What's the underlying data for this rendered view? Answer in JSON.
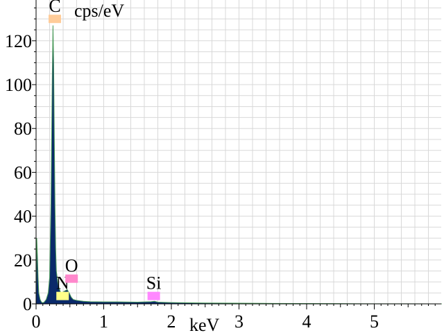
{
  "chart_data": {
    "type": "area",
    "xlabel": "keV",
    "ylabel": "cps/eV",
    "xlim": [
      0,
      6
    ],
    "ylim": [
      0,
      137
    ],
    "grid": true,
    "x_ticks": [
      {
        "value": 0,
        "label": "0"
      },
      {
        "value": 1,
        "label": "1"
      },
      {
        "value": 2,
        "label": "2"
      },
      {
        "value": 3,
        "label": "3"
      },
      {
        "value": 4,
        "label": "4"
      },
      {
        "value": 5,
        "label": "5"
      }
    ],
    "y_ticks": [
      {
        "value": 0,
        "label": "0"
      },
      {
        "value": 20,
        "label": "20"
      },
      {
        "value": 40,
        "label": "40"
      },
      {
        "value": 60,
        "label": "60"
      },
      {
        "value": 80,
        "label": "80"
      },
      {
        "value": 100,
        "label": "100"
      },
      {
        "value": 120,
        "label": "120"
      }
    ],
    "spectrum": {
      "x": [
        0.0,
        0.01,
        0.02,
        0.03,
        0.04,
        0.06,
        0.08,
        0.1,
        0.12,
        0.15,
        0.18,
        0.2,
        0.22,
        0.24,
        0.25,
        0.26,
        0.27,
        0.28,
        0.29,
        0.3,
        0.32,
        0.34,
        0.36,
        0.38,
        0.4,
        0.43,
        0.46,
        0.49,
        0.52,
        0.55,
        0.6,
        0.7,
        0.8,
        1.0,
        1.2,
        1.5,
        1.7,
        1.75,
        1.8,
        2.0,
        2.5,
        3.0,
        3.5,
        4.0,
        4.5,
        5.0,
        5.5,
        6.0
      ],
      "y": [
        0,
        30,
        22,
        12,
        5,
        2,
        0.8,
        0.5,
        0.8,
        2,
        5,
        12,
        45,
        105,
        127,
        110,
        75,
        45,
        25,
        15,
        10,
        7,
        5.5,
        5,
        5.5,
        6,
        6.5,
        5,
        3,
        2,
        1.6,
        1.2,
        1.0,
        0.9,
        0.9,
        0.8,
        1.0,
        1.2,
        0.8,
        0.6,
        0.4,
        0.3,
        0.2,
        0.15,
        0.1,
        0.05,
        0.02,
        0
      ]
    },
    "element_markers": [
      {
        "label": "C",
        "energy": 0.277,
        "marker_level": 130,
        "color": "#ffcc99"
      },
      {
        "label": "N",
        "energy": 0.392,
        "marker_level": 3.6,
        "color": "#ffff88"
      },
      {
        "label": "O",
        "energy": 0.525,
        "marker_level": 11.5,
        "color": "#ff88cc"
      },
      {
        "label": "Si",
        "energy": 1.74,
        "marker_level": 3.6,
        "color": "#ff88ff"
      }
    ],
    "colors": {
      "fill": "#0a2a6a",
      "outline": "#4a9a5a",
      "grid": "#d8d8d8"
    }
  }
}
